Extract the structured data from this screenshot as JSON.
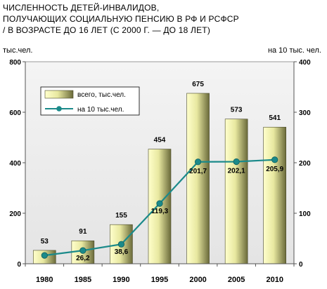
{
  "chart_data": {
    "type": "bar+line",
    "title_lines": [
      "ЧИСЛЕННОСТЬ ДЕТЕЙ-ИНВАЛИДОВ,",
      "ПОЛУЧАЮЩИХ СОЦИАЛЬНУЮ ПЕНСИЮ В РФ И РСФСР",
      "/ В ВОЗРАСТЕ ДО 16 ЛЕТ (С 2000 Г. — ДО 18 ЛЕТ)"
    ],
    "ylabel_left": "тыс.чел.",
    "ylabel_right": "на 10 тыс. чел.",
    "categories": [
      "1980",
      "1985",
      "1990",
      "1995",
      "2000",
      "2005",
      "2010"
    ],
    "ylim_left": [
      0,
      800
    ],
    "yticks_left": [
      0,
      200,
      400,
      600,
      800
    ],
    "ylim_right": [
      0,
      400
    ],
    "yticks_right": [
      0,
      100,
      200,
      300,
      400
    ],
    "series": [
      {
        "name": "всего, тыс.чел.",
        "type": "bar",
        "axis": "left",
        "values": [
          53,
          91,
          155,
          454,
          675,
          573,
          541
        ],
        "labels": [
          "53",
          "91",
          "155",
          "454",
          "675",
          "573",
          "541"
        ]
      },
      {
        "name": "на 10 тыс.чел.",
        "type": "line",
        "axis": "right",
        "values": [
          16.5,
          26.2,
          38.6,
          119.3,
          201.7,
          202.1,
          205.9
        ],
        "labels": [
          "",
          "26,2",
          "38,6",
          "119,3",
          "201,7",
          "202,1",
          "205,9"
        ]
      }
    ],
    "legend_position": "top-left",
    "grid": false,
    "plot_background": "#ebebeb",
    "bar_color_light": "#ffffcc",
    "bar_color_dark": "#6a6a3a",
    "line_color": "#1b8a8a"
  }
}
